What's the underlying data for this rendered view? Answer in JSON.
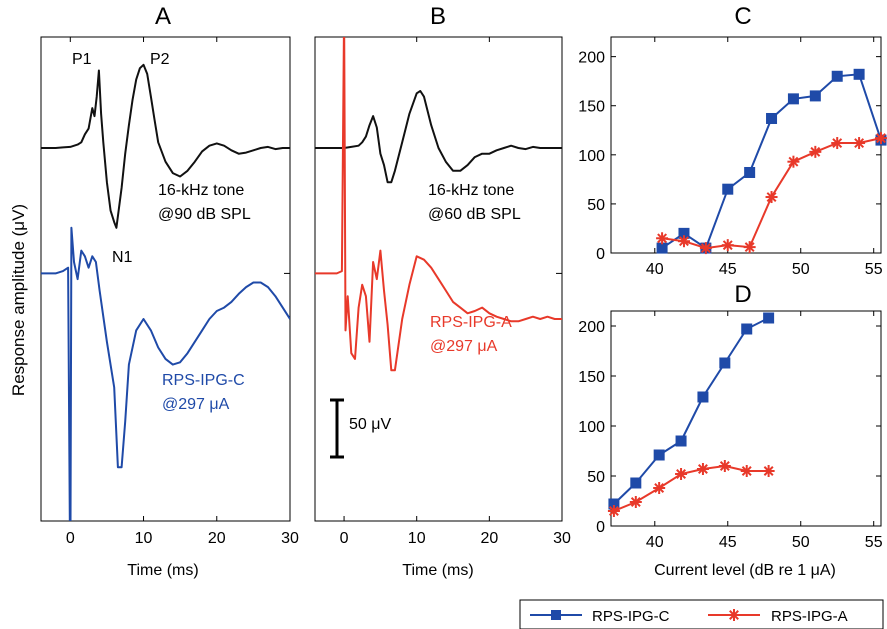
{
  "figure": {
    "ylabel": "Response amplitude (μV)",
    "colors": {
      "rps_ipg_c": "#1f4aa8",
      "rps_ipg_a": "#e8392a",
      "acoustic": "#111111"
    }
  },
  "chart_data": [
    {
      "panel": "A",
      "type": "line",
      "title": "A",
      "xlabel": "Time (ms)",
      "ylabel": "Response amplitude (μV)",
      "xlim": [
        -4,
        30
      ],
      "xticks": [
        "0",
        "10",
        "20",
        "30"
      ],
      "peak_labels": [
        "P1",
        "P2",
        "N1"
      ],
      "series": [
        {
          "name": "16-kHz tone",
          "annotation": [
            "16-kHz tone",
            "@90 dB SPL"
          ],
          "color": "#111111",
          "baseline_uV": 0,
          "x": [
            -4,
            -2,
            -1,
            0,
            1,
            1.5,
            2,
            2.5,
            3,
            3.3,
            3.6,
            3.9,
            4.2,
            4.5,
            5,
            5.5,
            6,
            6.3,
            7,
            7.5,
            8,
            8.5,
            9,
            9.5,
            10,
            10.5,
            11,
            11.5,
            12,
            13,
            14,
            15,
            16,
            17,
            18,
            19,
            20,
            21,
            22,
            23,
            24,
            25,
            26,
            27,
            28,
            29,
            30
          ],
          "y": [
            0,
            0,
            0.5,
            1,
            3,
            5,
            12,
            17,
            35,
            28,
            45,
            68,
            30,
            5,
            -30,
            -55,
            -65,
            -70,
            -35,
            -5,
            20,
            42,
            60,
            70,
            73,
            65,
            45,
            25,
            5,
            -12,
            -22,
            -25,
            -20,
            -12,
            -3,
            2,
            4,
            2,
            -2,
            -5,
            -4,
            -2,
            0,
            1,
            -1,
            0,
            0
          ]
        },
        {
          "name": "RPS-IPG-C",
          "annotation": [
            "RPS-IPG-C",
            "@297 μA"
          ],
          "color": "#1f4aa8",
          "baseline_uV": -110,
          "x": [
            -4,
            -2,
            -1,
            -0.3,
            0,
            0.15,
            0.5,
            1,
            1.5,
            2,
            2.5,
            3,
            3.5,
            4,
            5,
            6,
            6.5,
            7,
            7.5,
            8,
            9,
            10,
            11,
            12,
            13,
            14,
            15,
            16,
            17,
            18,
            19,
            20,
            21,
            22,
            23,
            24,
            25,
            26,
            27,
            28,
            29,
            30
          ],
          "y": [
            0,
            0,
            2,
            5,
            -280,
            40,
            10,
            -5,
            20,
            15,
            5,
            15,
            10,
            -15,
            -60,
            -100,
            -170,
            -170,
            -130,
            -80,
            -50,
            -40,
            -50,
            -65,
            -75,
            -80,
            -78,
            -70,
            -60,
            -50,
            -40,
            -33,
            -30,
            -25,
            -18,
            -12,
            -8,
            -8,
            -12,
            -20,
            -30,
            -40
          ]
        }
      ]
    },
    {
      "panel": "B",
      "type": "line",
      "title": "B",
      "xlabel": "Time (ms)",
      "xlim": [
        -4,
        30
      ],
      "xticks": [
        "0",
        "10",
        "20",
        "30"
      ],
      "scalebar": "50 μV",
      "series": [
        {
          "name": "16-kHz tone",
          "annotation": [
            "16-kHz tone",
            "@60 dB SPL"
          ],
          "color": "#111111",
          "baseline_uV": 0,
          "x": [
            -4,
            -1,
            0,
            1,
            2,
            2.5,
            3,
            3.5,
            4,
            4.5,
            5,
            5.5,
            6,
            6.5,
            7,
            8,
            9,
            10,
            10.5,
            11,
            12,
            13,
            14,
            15,
            16,
            17,
            18,
            19,
            20,
            21,
            22,
            23,
            24,
            25,
            26,
            27,
            28,
            29,
            30
          ],
          "y": [
            0,
            0,
            0,
            1,
            2,
            5,
            10,
            20,
            28,
            18,
            -5,
            -15,
            -30,
            -30,
            -20,
            5,
            30,
            48,
            50,
            45,
            20,
            0,
            -12,
            -20,
            -20,
            -15,
            -8,
            -5,
            -5,
            -2,
            0,
            2,
            0,
            -1,
            1,
            0,
            0,
            0,
            0
          ]
        },
        {
          "name": "RPS-IPG-A",
          "annotation": [
            "RPS-IPG-A",
            "@297 μA"
          ],
          "color": "#e8392a",
          "baseline_uV": -110,
          "x": [
            -4,
            -2,
            -1,
            -0.3,
            0,
            0.2,
            0.5,
            1,
            1.5,
            2,
            2.5,
            3,
            3.5,
            4,
            4.5,
            5,
            5.5,
            6,
            6.5,
            7,
            8,
            9,
            10,
            11,
            12,
            13,
            14,
            15,
            16,
            17,
            18,
            19,
            20,
            21,
            22,
            23,
            24,
            25,
            26,
            27,
            28,
            29,
            30
          ],
          "y": [
            0,
            0,
            0,
            2,
            230,
            -50,
            -20,
            -70,
            -75,
            -30,
            -10,
            -20,
            -60,
            10,
            -5,
            20,
            -15,
            -45,
            -85,
            -85,
            -40,
            -10,
            15,
            12,
            5,
            -5,
            -15,
            -25,
            -30,
            -35,
            -33,
            -30,
            -35,
            -38,
            -40,
            -42,
            -42,
            -40,
            -38,
            -40,
            -38,
            -40,
            -40
          ]
        }
      ]
    },
    {
      "panel": "C",
      "type": "line",
      "title": "C",
      "xlim": [
        37,
        55.5
      ],
      "ylim": [
        0,
        220
      ],
      "xticks": [
        40,
        45,
        50,
        55
      ],
      "yticks": [
        0,
        50,
        100,
        150,
        200
      ],
      "series": [
        {
          "name": "RPS-IPG-C",
          "color": "#1f4aa8",
          "marker": "square",
          "x": [
            40.5,
            42,
            43.5,
            45,
            46.5,
            48,
            49.5,
            51,
            52.5,
            54,
            55.5
          ],
          "y": [
            5,
            20,
            5,
            65,
            82,
            137,
            157,
            160,
            180,
            182,
            115
          ]
        },
        {
          "name": "RPS-IPG-A",
          "color": "#e8392a",
          "marker": "asterisk",
          "x": [
            40.5,
            42,
            43.5,
            45,
            46.5,
            48,
            49.5,
            51,
            52.5,
            54,
            55.5
          ],
          "y": [
            15,
            12,
            5,
            8,
            6,
            57,
            93,
            103,
            112,
            112,
            117
          ]
        }
      ]
    },
    {
      "panel": "D",
      "type": "line",
      "title": "D",
      "xlabel": "Current level (dB re 1 μA)",
      "xlim": [
        37,
        55.5
      ],
      "ylim": [
        0,
        215
      ],
      "xticks": [
        40,
        45,
        50,
        55
      ],
      "yticks": [
        0,
        50,
        100,
        150,
        200
      ],
      "series": [
        {
          "name": "RPS-IPG-C",
          "color": "#1f4aa8",
          "marker": "square",
          "x": [
            37.2,
            38.7,
            40.3,
            41.8,
            43.3,
            44.8,
            46.3,
            47.8
          ],
          "y": [
            22,
            43,
            71,
            85,
            129,
            163,
            197,
            208
          ]
        },
        {
          "name": "RPS-IPG-A",
          "color": "#e8392a",
          "marker": "asterisk",
          "x": [
            37.2,
            38.7,
            40.3,
            41.8,
            43.3,
            44.8,
            46.3,
            47.8
          ],
          "y": [
            15,
            24,
            38,
            52,
            57,
            60,
            55,
            55
          ]
        }
      ]
    }
  ],
  "legend": {
    "placement": "bottom-right",
    "entries": [
      {
        "label": "RPS-IPG-C",
        "color": "#1f4aa8",
        "marker": "square"
      },
      {
        "label": "RPS-IPG-A",
        "color": "#e8392a",
        "marker": "asterisk"
      }
    ]
  }
}
